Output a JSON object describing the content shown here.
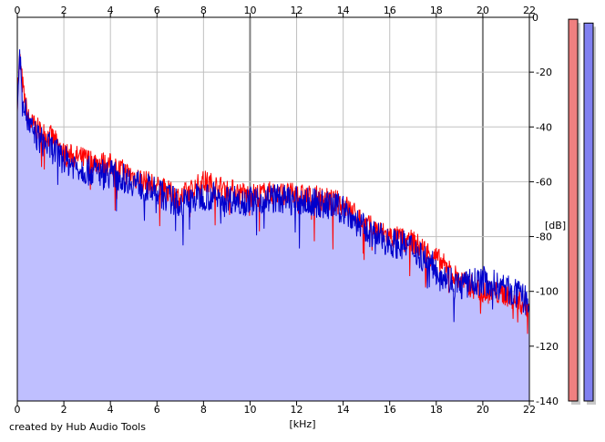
{
  "footer": {
    "credit": "created by Hub Audio Tools"
  },
  "colors": {
    "left_channel": "#ff0000",
    "right_channel": "#0000cc",
    "fill": "#bfbfff",
    "meter_left": "#f08080",
    "meter_right": "#8080f0",
    "grid": "#c0c0c0",
    "grid_major": "#808080"
  },
  "chart_data": {
    "type": "area",
    "title": "",
    "xlabel": "[kHz]",
    "ylabel": "[dB]",
    "x_ticks": [
      0,
      2,
      4,
      6,
      8,
      10,
      12,
      14,
      16,
      18,
      20,
      22
    ],
    "y_ticks": [
      0,
      -20,
      -40,
      -60,
      -80,
      -100,
      -120,
      -140
    ],
    "xlim": [
      0,
      22
    ],
    "ylim": [
      -140,
      0
    ],
    "grid": true,
    "legend": "none",
    "x": [
      0,
      0.1,
      0.3,
      0.5,
      1,
      1.5,
      2,
      3,
      4,
      5,
      6,
      7,
      8,
      9,
      10,
      11,
      12,
      13,
      14,
      15,
      16,
      17,
      18,
      19,
      20,
      21,
      22
    ],
    "series": [
      {
        "values": [
          -30,
          -15,
          -30,
          -38,
          -42,
          -44,
          -50,
          -52,
          -54,
          -58,
          -62,
          -66,
          -60,
          -63,
          -65,
          -64,
          -65,
          -66,
          -68,
          -76,
          -80,
          -82,
          -88,
          -96,
          -100,
          -101,
          -106
        ]
      },
      {
        "values": [
          -30,
          -15,
          -32,
          -40,
          -45,
          -48,
          -52,
          -56,
          -57,
          -60,
          -64,
          -68,
          -65,
          -66,
          -67,
          -66,
          -67,
          -68,
          -70,
          -78,
          -82,
          -84,
          -92,
          -98,
          -96,
          -99,
          -104
        ]
      }
    ],
    "meters": {
      "left": 0.995,
      "right": 0.985
    }
  }
}
